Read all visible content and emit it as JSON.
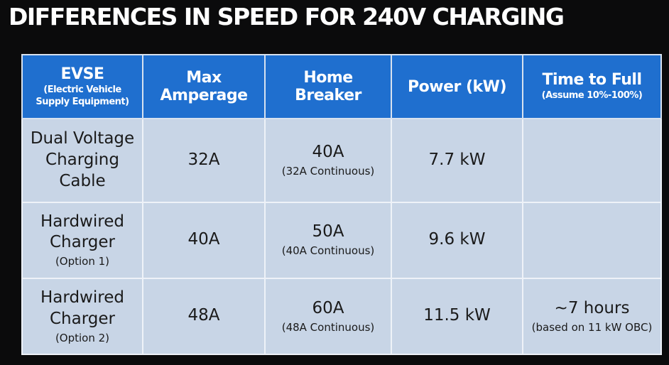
{
  "title": "DIFFERENCES IN SPEED FOR 240V CHARGING",
  "table": {
    "header": [
      {
        "text": "EVSE",
        "sub": "(Electric Vehicle Supply Equipment)"
      },
      {
        "text": "Max Amperage"
      },
      {
        "text": "Home Breaker"
      },
      {
        "text": "Power (kW)"
      },
      {
        "text": "Time to Full",
        "sub": "(Assume 10%-100%)"
      }
    ],
    "rows": [
      [
        {
          "text": "Dual Voltage Charging Cable"
        },
        {
          "text": "32A"
        },
        {
          "text": "40A",
          "sub": "(32A Continuous)"
        },
        {
          "text": "7.7 kW"
        },
        null
      ],
      [
        {
          "text": "Hardwired Charger",
          "sub": "(Option 1)"
        },
        {
          "text": "40A"
        },
        {
          "text": "50A",
          "sub": "(40A Continuous)"
        },
        {
          "text": "9.6 kW"
        },
        null
      ],
      [
        {
          "text": "Hardwired Charger",
          "sub": "(Option 2)"
        },
        {
          "text": "48A"
        },
        {
          "text": "60A",
          "sub": "(48A Continuous)"
        },
        {
          "text": "11.5 kW"
        },
        {
          "text": "~7 hours",
          "sub": "(based on 11 kW OBC)"
        }
      ]
    ]
  }
}
